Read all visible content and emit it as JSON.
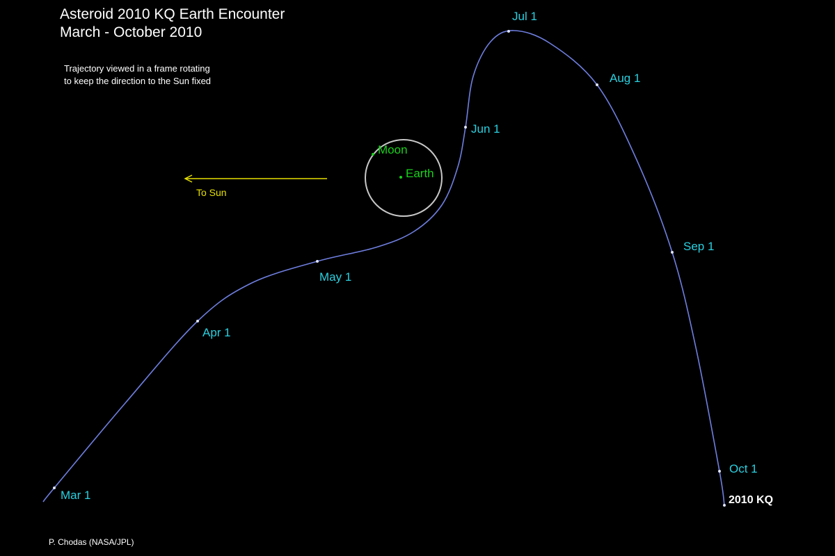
{
  "title": {
    "line1": "Asteroid 2010 KQ  Earth Encounter",
    "line2": "March - October 2010"
  },
  "note": {
    "line1": "Trajectory viewed in a frame rotating",
    "line2": "to keep the direction to the Sun fixed"
  },
  "sun_arrow": {
    "label": "To Sun",
    "color": "#e6e000"
  },
  "bodies": {
    "moon": "Moon",
    "earth": "Earth",
    "color": "#19d11b",
    "orbit_color": "#c8c8c8"
  },
  "trajectory": {
    "color": "#6f7fe0",
    "dates": [
      "Mar 1",
      "Apr 1",
      "May 1",
      "Jun 1",
      "Jul 1",
      "Aug 1",
      "Sep 1",
      "Oct 1"
    ],
    "label_color": "#2ad0e0",
    "object": "2010 KQ"
  },
  "credit": "P. Chodas (NASA/JPL)"
}
